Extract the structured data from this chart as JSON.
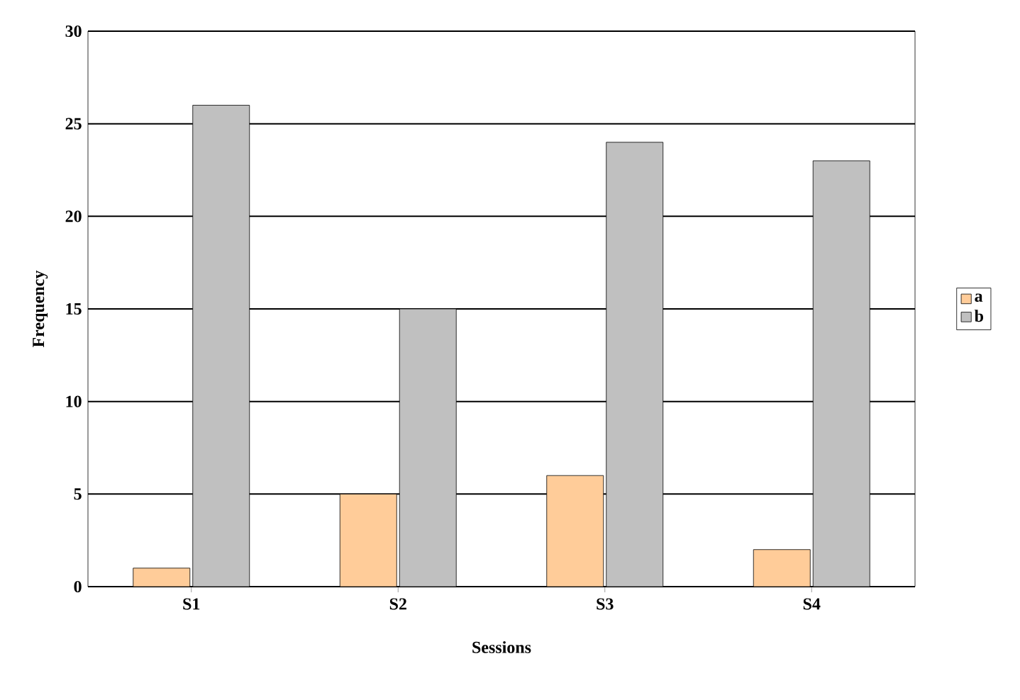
{
  "chart_data": {
    "type": "bar",
    "xlabel": "Sessions",
    "ylabel": "Frequency",
    "categories": [
      "S1",
      "S2",
      "S3",
      "S4"
    ],
    "series": [
      {
        "name": "a",
        "color": "#ffcc99",
        "values": [
          1,
          5,
          6,
          2
        ]
      },
      {
        "name": "b",
        "color": "#c0c0c0",
        "values": [
          26,
          15,
          24,
          23
        ]
      }
    ],
    "ylim": [
      0,
      30
    ],
    "yticks": [
      0,
      5,
      10,
      15,
      20,
      25,
      30
    ],
    "grid": "y",
    "legend": "right"
  }
}
